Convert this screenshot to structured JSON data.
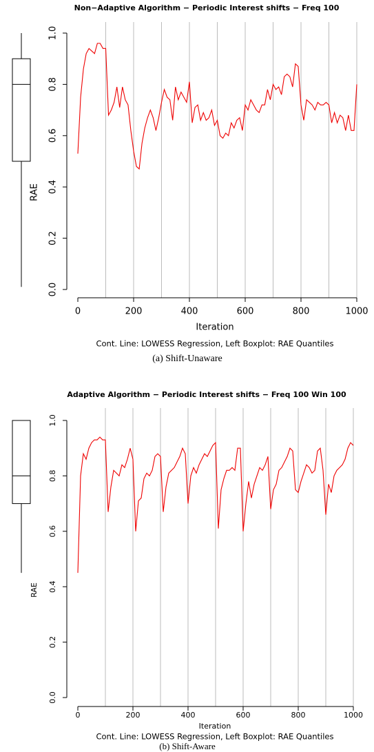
{
  "chart_data": [
    {
      "type": "line",
      "title": "Non−Adaptive Algorithm − Periodic Interest shifts − Freq  100",
      "x_label": "Iteration",
      "y_label": "RAE",
      "footnote": "Cont. Line: LOWESS Regression, Left Boxplot: RAE Quantiles",
      "caption": "(a) Shift-Unaware",
      "xlim": [
        0,
        1000
      ],
      "ylim": [
        0,
        1
      ],
      "xticks": [
        0,
        200,
        400,
        600,
        800,
        1000
      ],
      "yticks": [
        {
          "value": 0,
          "label": "0.0"
        },
        0.2,
        0.4,
        0.6,
        0.8,
        {
          "value": 1,
          "label": "1.0"
        }
      ],
      "vlines": [
        100,
        200,
        300,
        400,
        500,
        600,
        700,
        800,
        900,
        1000
      ],
      "vline_color": "#bbbbbb",
      "boxplot": {
        "whisker_low": 0.01,
        "q1": 0.5,
        "median": 0.8,
        "q3": 0.9,
        "whisker_high": 1.0
      },
      "x": [
        0,
        10,
        20,
        30,
        40,
        50,
        60,
        70,
        80,
        90,
        100,
        110,
        120,
        130,
        140,
        150,
        160,
        170,
        180,
        190,
        200,
        210,
        220,
        230,
        240,
        250,
        260,
        270,
        280,
        290,
        300,
        310,
        320,
        330,
        340,
        350,
        360,
        370,
        380,
        390,
        400,
        410,
        420,
        430,
        440,
        450,
        460,
        470,
        480,
        490,
        500,
        510,
        520,
        530,
        540,
        550,
        560,
        570,
        580,
        590,
        600,
        610,
        620,
        630,
        640,
        650,
        660,
        670,
        680,
        690,
        700,
        710,
        720,
        730,
        740,
        750,
        760,
        770,
        780,
        790,
        800,
        810,
        820,
        830,
        840,
        850,
        860,
        870,
        880,
        890,
        900,
        910,
        920,
        930,
        940,
        950,
        960,
        970,
        980,
        990,
        1000
      ],
      "series": [
        {
          "color": "#ee0000",
          "values": [
            0.53,
            0.75,
            0.86,
            0.92,
            0.94,
            0.93,
            0.92,
            0.96,
            0.96,
            0.94,
            0.94,
            0.68,
            0.7,
            0.73,
            0.79,
            0.71,
            0.79,
            0.74,
            0.72,
            0.62,
            0.54,
            0.48,
            0.47,
            0.57,
            0.63,
            0.67,
            0.7,
            0.67,
            0.62,
            0.67,
            0.73,
            0.78,
            0.75,
            0.74,
            0.66,
            0.79,
            0.74,
            0.77,
            0.75,
            0.73,
            0.81,
            0.65,
            0.71,
            0.72,
            0.66,
            0.69,
            0.66,
            0.67,
            0.7,
            0.64,
            0.66,
            0.6,
            0.59,
            0.61,
            0.6,
            0.65,
            0.63,
            0.66,
            0.67,
            0.62,
            0.72,
            0.7,
            0.74,
            0.72,
            0.7,
            0.69,
            0.72,
            0.72,
            0.78,
            0.74,
            0.8,
            0.78,
            0.79,
            0.76,
            0.83,
            0.84,
            0.83,
            0.79,
            0.88,
            0.87,
            0.72,
            0.66,
            0.74,
            0.73,
            0.72,
            0.7,
            0.73,
            0.72,
            0.72,
            0.73,
            0.72,
            0.65,
            0.69,
            0.65,
            0.68,
            0.67,
            0.62,
            0.68,
            0.62,
            0.62,
            0.8
          ]
        }
      ]
    },
    {
      "type": "line",
      "title": "Adaptive Algorithm − Periodic Interest shifts − Freq  100  Win  100",
      "x_label": "Iteration",
      "y_label": "RAE",
      "footnote": "Cont. Line: LOWESS Regression, Left Boxplot: RAE Quantiles",
      "caption": "(b) Shift-Aware",
      "xlim": [
        0,
        1000
      ],
      "ylim": [
        0,
        1
      ],
      "xticks": [
        0,
        200,
        400,
        600,
        800,
        1000
      ],
      "yticks": [
        {
          "value": 0,
          "label": "0.0"
        },
        0.2,
        0.4,
        0.6,
        0.8,
        {
          "value": 1,
          "label": "1.0"
        }
      ],
      "vlines": [
        100,
        200,
        300,
        400,
        500,
        600,
        700,
        800,
        900,
        1000
      ],
      "vline_color": "#bbbbbb",
      "boxplot": {
        "whisker_low": 0.45,
        "q1": 0.7,
        "median": 0.8,
        "q3": 1.0,
        "whisker_high": 1.0
      },
      "x": [
        0,
        10,
        20,
        30,
        40,
        50,
        60,
        70,
        80,
        90,
        100,
        110,
        120,
        130,
        140,
        150,
        160,
        170,
        180,
        190,
        200,
        210,
        220,
        230,
        240,
        250,
        260,
        270,
        280,
        290,
        300,
        310,
        320,
        330,
        340,
        350,
        360,
        370,
        380,
        390,
        400,
        410,
        420,
        430,
        440,
        450,
        460,
        470,
        480,
        490,
        500,
        510,
        520,
        530,
        540,
        550,
        560,
        570,
        580,
        590,
        600,
        610,
        620,
        630,
        640,
        650,
        660,
        670,
        680,
        690,
        700,
        710,
        720,
        730,
        740,
        750,
        760,
        770,
        780,
        790,
        800,
        810,
        820,
        830,
        840,
        850,
        860,
        870,
        880,
        890,
        900,
        910,
        920,
        930,
        940,
        950,
        960,
        970,
        980,
        990,
        1000
      ],
      "series": [
        {
          "color": "#ee0000",
          "values": [
            0.45,
            0.8,
            0.88,
            0.86,
            0.9,
            0.92,
            0.93,
            0.93,
            0.94,
            0.93,
            0.93,
            0.67,
            0.76,
            0.82,
            0.81,
            0.8,
            0.84,
            0.83,
            0.86,
            0.9,
            0.86,
            0.6,
            0.71,
            0.72,
            0.79,
            0.81,
            0.8,
            0.82,
            0.87,
            0.88,
            0.87,
            0.67,
            0.76,
            0.81,
            0.82,
            0.83,
            0.85,
            0.87,
            0.9,
            0.88,
            0.7,
            0.8,
            0.83,
            0.81,
            0.84,
            0.86,
            0.88,
            0.87,
            0.89,
            0.91,
            0.92,
            0.61,
            0.75,
            0.79,
            0.82,
            0.82,
            0.83,
            0.82,
            0.9,
            0.9,
            0.6,
            0.7,
            0.78,
            0.72,
            0.77,
            0.8,
            0.83,
            0.82,
            0.84,
            0.87,
            0.68,
            0.75,
            0.77,
            0.82,
            0.83,
            0.85,
            0.87,
            0.9,
            0.89,
            0.75,
            0.74,
            0.78,
            0.81,
            0.84,
            0.83,
            0.81,
            0.82,
            0.89,
            0.9,
            0.82,
            0.66,
            0.77,
            0.74,
            0.8,
            0.82,
            0.83,
            0.84,
            0.86,
            0.9,
            0.92,
            0.91
          ]
        }
      ]
    }
  ]
}
